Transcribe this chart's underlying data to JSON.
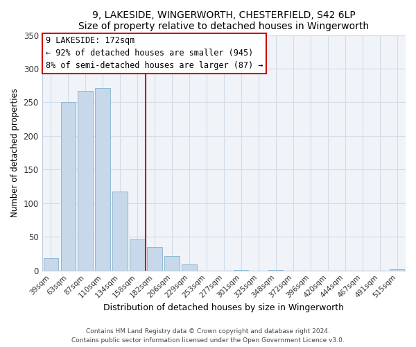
{
  "title": "9, LAKESIDE, WINGERWORTH, CHESTERFIELD, S42 6LP",
  "subtitle": "Size of property relative to detached houses in Wingerworth",
  "xlabel": "Distribution of detached houses by size in Wingerworth",
  "ylabel": "Number of detached properties",
  "bar_labels": [
    "39sqm",
    "63sqm",
    "87sqm",
    "110sqm",
    "134sqm",
    "158sqm",
    "182sqm",
    "206sqm",
    "229sqm",
    "253sqm",
    "277sqm",
    "301sqm",
    "325sqm",
    "348sqm",
    "372sqm",
    "396sqm",
    "420sqm",
    "444sqm",
    "467sqm",
    "491sqm",
    "515sqm"
  ],
  "bar_values": [
    18,
    250,
    267,
    271,
    117,
    46,
    35,
    21,
    9,
    0,
    0,
    1,
    0,
    1,
    0,
    0,
    0,
    0,
    0,
    0,
    2
  ],
  "bar_color": "#c6d8ea",
  "bar_edge_color": "#8fb8d4",
  "vline_color": "#cc0000",
  "annotation_title": "9 LAKESIDE: 172sqm",
  "annotation_line1": "← 92% of detached houses are smaller (945)",
  "annotation_line2": "8% of semi-detached houses are larger (87) →",
  "annotation_box_color": "#ffffff",
  "annotation_box_edge": "#cc0000",
  "ylim": [
    0,
    350
  ],
  "yticks": [
    0,
    50,
    100,
    150,
    200,
    250,
    300,
    350
  ],
  "footer1": "Contains HM Land Registry data © Crown copyright and database right 2024.",
  "footer2": "Contains public sector information licensed under the Open Government Licence v3.0.",
  "grid_color": "#d0dce8",
  "bg_color": "#f0f4f8"
}
